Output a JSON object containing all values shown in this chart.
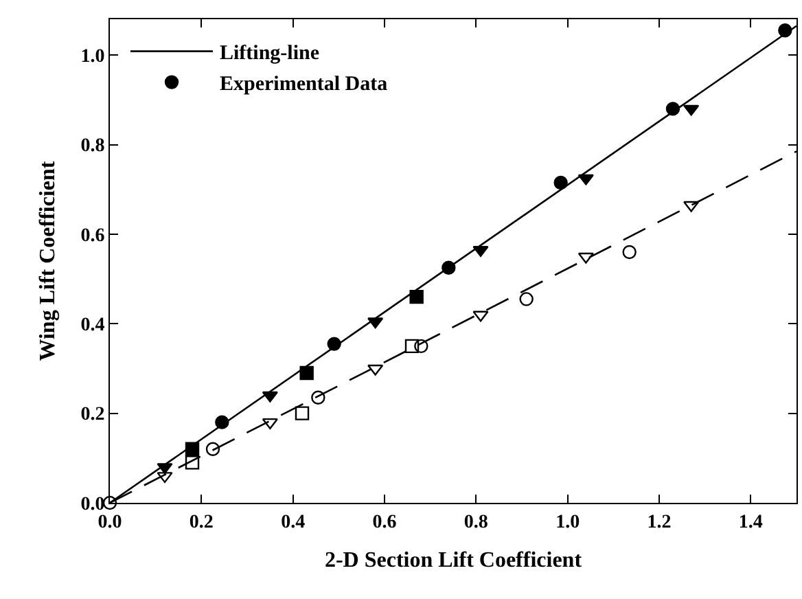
{
  "chart_data": {
    "type": "scatter",
    "xlabel": "2-D Section Lift Coefficient",
    "ylabel": "Wing Lift Coefficient",
    "xlim": [
      0,
      1.5
    ],
    "ylim": [
      0,
      1.08
    ],
    "xticks": [
      {
        "value": 0,
        "label": "0.0"
      },
      0.2,
      0.4,
      0.6,
      0.8,
      {
        "value": 1,
        "label": "1.0"
      },
      1.2,
      1.4
    ],
    "yticks": [
      {
        "value": 0,
        "label": "0.0"
      },
      0.2,
      0.4,
      0.6,
      0.8,
      {
        "value": 1,
        "label": "1.0"
      }
    ],
    "grid": false,
    "legend": "top left",
    "series": [
      {
        "name": "Lifting-line",
        "type": "line",
        "color": "#000000",
        "marker": "none",
        "line_style": "solid",
        "x": [
          0,
          1.5
        ],
        "values": [
          0,
          1.065
        ]
      },
      {
        "type": "line",
        "color": "#000000",
        "marker": "none",
        "line_style": "dashed",
        "x": [
          0,
          1.5
        ],
        "values": [
          0,
          0.785
        ]
      },
      {
        "color": "#000000",
        "marker": "triangle-down",
        "x": [
          0.12,
          0.35,
          0.58,
          0.81,
          1.04,
          1.27
        ],
        "values": [
          0.08,
          0.24,
          0.405,
          0.565,
          0.725,
          0.88
        ]
      },
      {
        "color": "#000000",
        "marker": "square",
        "x": [
          0.18,
          0.43,
          0.67
        ],
        "values": [
          0.12,
          0.29,
          0.46
        ]
      },
      {
        "name": "Experimental Data",
        "color": "#000000",
        "marker": "circle",
        "x": [
          0.245,
          0.49,
          0.74,
          0.985,
          1.23,
          1.475
        ],
        "values": [
          0.18,
          0.355,
          0.525,
          0.715,
          0.88,
          1.055
        ]
      },
      {
        "color": "#000000",
        "marker": "triangle-down-open",
        "x": [
          0.12,
          0.35,
          0.58,
          0.81,
          1.04,
          1.27
        ],
        "values": [
          0.06,
          0.18,
          0.3,
          0.42,
          0.55,
          0.665
        ]
      },
      {
        "color": "#000000",
        "marker": "square-open",
        "x": [
          0.18,
          0.42,
          0.66
        ],
        "values": [
          0.09,
          0.2,
          0.35
        ]
      },
      {
        "color": "#000000",
        "marker": "circle-open",
        "x": [
          0,
          0.225,
          0.455,
          0.68,
          0.91,
          1.135
        ],
        "values": [
          0,
          0.12,
          0.235,
          0.35,
          0.455,
          0.56
        ]
      }
    ]
  }
}
